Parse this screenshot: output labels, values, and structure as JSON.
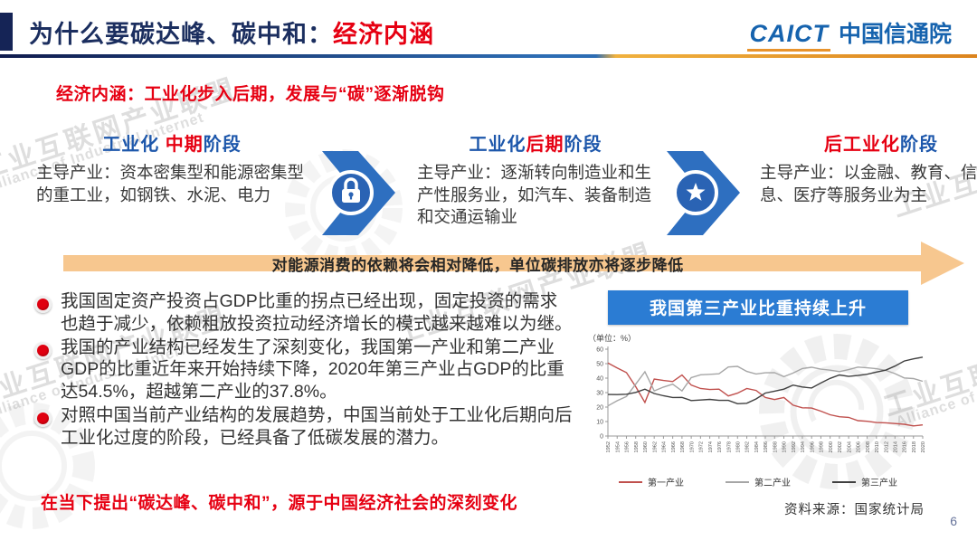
{
  "header": {
    "title_main": "为什么要碳达峰、碳中和：",
    "title_accent": "经济内涵",
    "logo_en": "CAICT",
    "logo_cn": "中国信通院"
  },
  "subtitle": "经济内涵：工业化步入后期，发展与“碳”逐渐脱钩",
  "stages": [
    {
      "pre": "工业化 ",
      "mid": "中期",
      "post": "阶段",
      "body": "主导产业：资本密集型和能源密集型的重工业，如钢铁、水泥、电力"
    },
    {
      "pre": "工业化",
      "mid": "后期",
      "post": "阶段",
      "body": "主导产业：逐渐转向制造业和生产性服务业，如汽车、装备制造和交通运输业"
    },
    {
      "pre": "",
      "mid": "后工业化",
      "post": "阶段",
      "body": "主导产业：以金融、教育、信息、医疗等服务业为主"
    }
  ],
  "arrow_banner": "对能源消费的依赖将会相对降低，单位碳排放亦将逐步降低",
  "bullets": [
    "我国固定资产投资占GDP比重的拐点已经出现，固定投资的需求也趋于减少，依赖粗放投资拉动经济增长的模式越来越难以为继。",
    "我国的产业结构已经发生了深刻变化，我国第一产业和第二产业GDP的比重近年来开始持续下降，2020年第三产业占GDP的比重达54.5%，超越第二产业的37.8%。",
    "对照中国当前产业结构的发展趋势，中国当前处于工业化后期向后工业化过度的阶段，已经具备了低碳发展的潜力。"
  ],
  "chart_panel": {
    "title": "我国第三产业比重持续上升",
    "source": "资料来源：国家统计局"
  },
  "conclusion": "在当下提出“碳达峰、碳中和”，源于中国经济社会的深刻变化",
  "page_number": "6",
  "watermark": {
    "cn": "工业互联网产业联盟",
    "en": "Alliance of Industrial Internet"
  },
  "colors": {
    "accent_red": "#e60012",
    "title_navy": "#1b2e5f",
    "stage_blue": "#1d57ab",
    "chevron_blue": "#2e6fc0",
    "banner_orange": "#f7c78f",
    "panel_blue": "#2b7cd3",
    "logo_blue": "#1663ae",
    "logo_underline_orange": "#e8932c"
  },
  "chart_data": {
    "type": "line",
    "title": "我国第三产业比重持续上升",
    "unit": "（单位：%）",
    "xlabel": "",
    "ylabel": "%",
    "ylim": [
      0,
      60
    ],
    "yticks": [
      0,
      10,
      20,
      30,
      40,
      50,
      60
    ],
    "grid": false,
    "legend_position": "bottom",
    "source": "资料来源：国家统计局",
    "x": [
      1952,
      1954,
      1956,
      1958,
      1960,
      1962,
      1964,
      1966,
      1968,
      1970,
      1972,
      1974,
      1976,
      1978,
      1980,
      1982,
      1984,
      1986,
      1988,
      1990,
      1992,
      1994,
      1996,
      1998,
      2000,
      2002,
      2004,
      2006,
      2008,
      2010,
      2012,
      2014,
      2016,
      2018,
      2020
    ],
    "series": [
      {
        "name": "第一产业",
        "color": "#c0504d",
        "values": [
          50.5,
          47.0,
          43.8,
          34.1,
          23.2,
          39.4,
          38.4,
          37.6,
          42.2,
          35.2,
          32.8,
          32.1,
          32.4,
          27.7,
          29.6,
          32.8,
          31.5,
          26.6,
          25.2,
          26.6,
          21.3,
          19.5,
          19.3,
          17.2,
          14.7,
          13.3,
          12.9,
          10.6,
          10.2,
          9.3,
          9.1,
          8.6,
          8.1,
          7.0,
          7.7
        ]
      },
      {
        "name": "第二产业",
        "color": "#a6a6a6",
        "values": [
          20.8,
          24.4,
          27.3,
          35.8,
          44.4,
          31.2,
          33.8,
          35.8,
          31.1,
          40.3,
          42.3,
          42.6,
          43.0,
          47.7,
          48.1,
          44.6,
          42.9,
          43.7,
          43.8,
          41.0,
          43.5,
          46.6,
          47.5,
          46.2,
          45.5,
          44.5,
          45.9,
          47.6,
          47.1,
          46.5,
          45.4,
          43.1,
          40.1,
          39.7,
          37.8
        ]
      },
      {
        "name": "第三产业",
        "color": "#404040",
        "values": [
          28.7,
          28.6,
          28.9,
          30.1,
          32.4,
          29.4,
          27.8,
          26.6,
          26.7,
          24.5,
          24.9,
          25.3,
          24.6,
          24.6,
          22.3,
          22.6,
          25.6,
          29.7,
          31.0,
          32.4,
          35.2,
          33.9,
          33.2,
          36.6,
          39.8,
          42.2,
          41.2,
          41.8,
          42.7,
          44.2,
          45.5,
          48.3,
          51.8,
          53.3,
          54.5
        ]
      }
    ]
  }
}
